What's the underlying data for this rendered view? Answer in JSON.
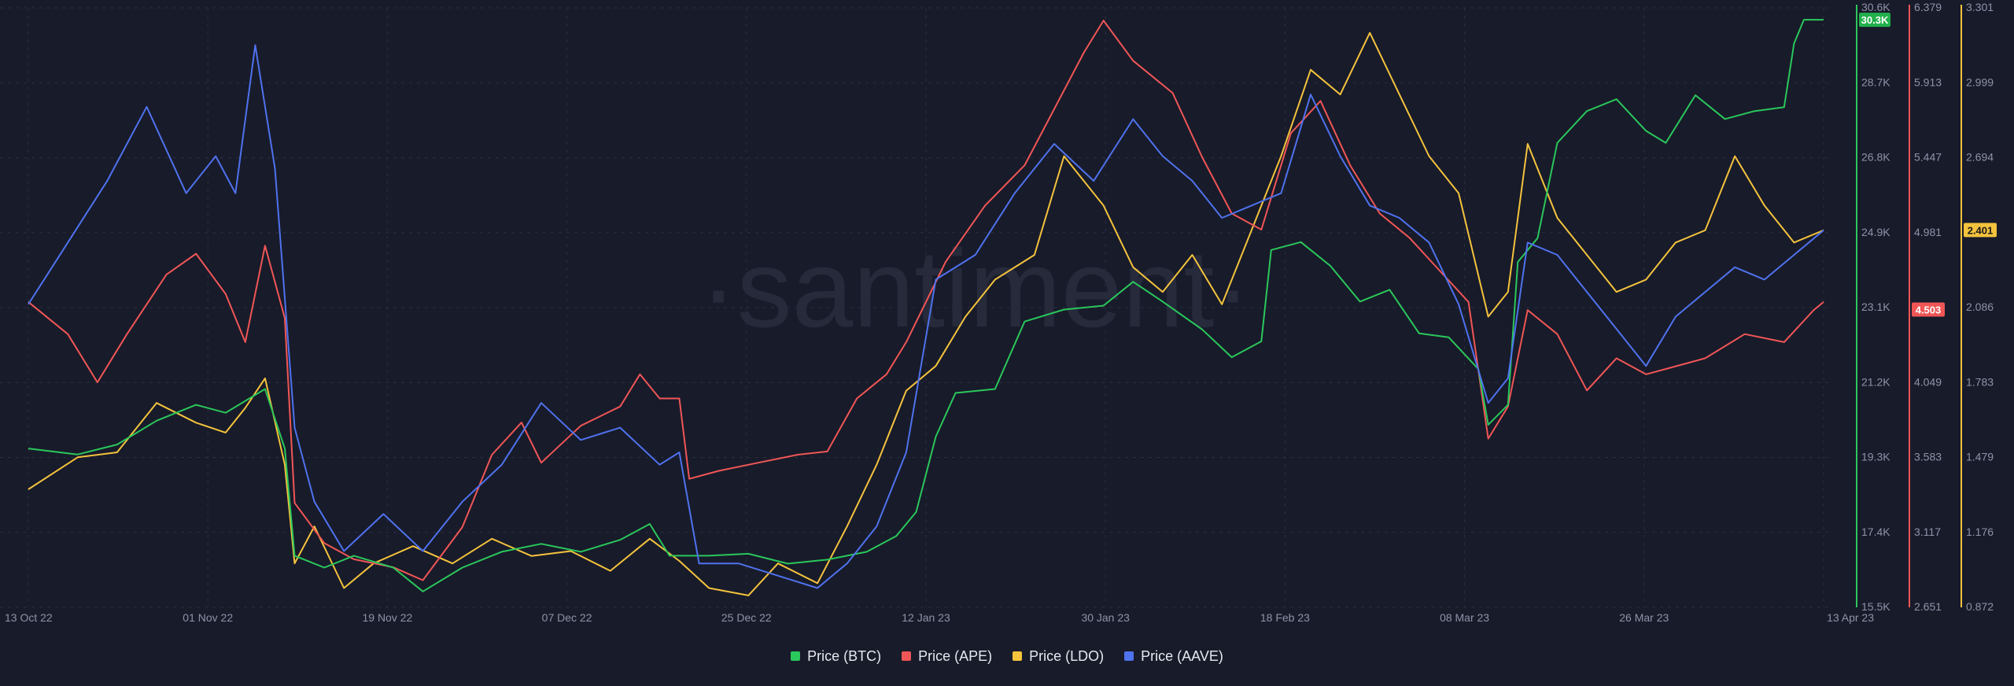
{
  "watermark": "·santiment·",
  "chart_data": {
    "type": "line",
    "x_ticks": [
      "13 Oct 22",
      "01 Nov 22",
      "19 Nov 22",
      "07 Dec 22",
      "25 Dec 22",
      "12 Jan 23",
      "30 Jan 23",
      "18 Feb 23",
      "08 Mar 23",
      "26 Mar 23",
      "13 Apr 23"
    ],
    "x_range": [
      "2022-10-13",
      "2023-04-13"
    ],
    "grid": true,
    "legend_position": "bottom-center",
    "axes": [
      {
        "id": "btc",
        "color": "#2ac75b",
        "range": [
          15500,
          30600
        ],
        "tick_labels": [
          "30.6K",
          "28.7K",
          "26.8K",
          "24.9K",
          "23.1K",
          "21.2K",
          "19.3K",
          "17.4K",
          "15.5K"
        ],
        "current_label": "30.3K",
        "current_value": 30300
      },
      {
        "id": "ape",
        "color": "#f05656",
        "range": [
          2.651,
          6.379
        ],
        "tick_labels": [
          "6.379",
          "5.913",
          "5.447",
          "4.981",
          "4.515",
          "4.049",
          "3.583",
          "3.117",
          "2.651"
        ],
        "current_label": "4.503",
        "current_value": 4.503
      },
      {
        "id": "ldo",
        "color": "#f4c33d",
        "range": [
          0.872,
          3.301
        ],
        "tick_labels": [
          "3.301",
          "2.999",
          "2.694",
          "2.391",
          "2.086",
          "1.783",
          "1.479",
          "1.176",
          "0.872"
        ],
        "current_label": "2.401",
        "current_value": 2.401
      }
    ],
    "series": [
      {
        "name": "Price (BTC)",
        "color": "#2ac75b",
        "axis": "btc",
        "points": [
          [
            "2022-10-13",
            19500
          ],
          [
            "2022-10-18",
            19350
          ],
          [
            "2022-10-22",
            19600
          ],
          [
            "2022-10-26",
            20200
          ],
          [
            "2022-10-30",
            20600
          ],
          [
            "2022-11-02",
            20400
          ],
          [
            "2022-11-04",
            20700
          ],
          [
            "2022-11-06",
            21000
          ],
          [
            "2022-11-08",
            19500
          ],
          [
            "2022-11-09",
            16800
          ],
          [
            "2022-11-12",
            16500
          ],
          [
            "2022-11-15",
            16800
          ],
          [
            "2022-11-19",
            16500
          ],
          [
            "2022-11-22",
            15900
          ],
          [
            "2022-11-26",
            16500
          ],
          [
            "2022-11-30",
            16900
          ],
          [
            "2022-12-04",
            17100
          ],
          [
            "2022-12-08",
            16900
          ],
          [
            "2022-12-12",
            17200
          ],
          [
            "2022-12-15",
            17600
          ],
          [
            "2022-12-17",
            16800
          ],
          [
            "2022-12-21",
            16800
          ],
          [
            "2022-12-25",
            16850
          ],
          [
            "2022-12-29",
            16600
          ],
          [
            "2023-01-02",
            16700
          ],
          [
            "2023-01-06",
            16900
          ],
          [
            "2023-01-09",
            17300
          ],
          [
            "2023-01-11",
            17900
          ],
          [
            "2023-01-13",
            19800
          ],
          [
            "2023-01-15",
            20900
          ],
          [
            "2023-01-19",
            21000
          ],
          [
            "2023-01-22",
            22700
          ],
          [
            "2023-01-26",
            23000
          ],
          [
            "2023-01-30",
            23100
          ],
          [
            "2023-02-02",
            23700
          ],
          [
            "2023-02-05",
            23200
          ],
          [
            "2023-02-09",
            22500
          ],
          [
            "2023-02-12",
            21800
          ],
          [
            "2023-02-15",
            22200
          ],
          [
            "2023-02-16",
            24500
          ],
          [
            "2023-02-19",
            24700
          ],
          [
            "2023-02-22",
            24100
          ],
          [
            "2023-02-25",
            23200
          ],
          [
            "2023-02-28",
            23500
          ],
          [
            "2023-03-03",
            22400
          ],
          [
            "2023-03-06",
            22300
          ],
          [
            "2023-03-09",
            21500
          ],
          [
            "2023-03-10",
            20100
          ],
          [
            "2023-03-12",
            20600
          ],
          [
            "2023-03-13",
            24200
          ],
          [
            "2023-03-15",
            24800
          ],
          [
            "2023-03-17",
            27200
          ],
          [
            "2023-03-20",
            28000
          ],
          [
            "2023-03-23",
            28300
          ],
          [
            "2023-03-26",
            27500
          ],
          [
            "2023-03-28",
            27200
          ],
          [
            "2023-03-31",
            28400
          ],
          [
            "2023-04-03",
            27800
          ],
          [
            "2023-04-06",
            28000
          ],
          [
            "2023-04-09",
            28100
          ],
          [
            "2023-04-10",
            29700
          ],
          [
            "2023-04-11",
            30300
          ],
          [
            "2023-04-13",
            30300
          ]
        ]
      },
      {
        "name": "Price (APE)",
        "color": "#f05656",
        "axis": "ape",
        "points": [
          [
            "2022-10-13",
            4.55
          ],
          [
            "2022-10-17",
            4.35
          ],
          [
            "2022-10-20",
            4.05
          ],
          [
            "2022-10-23",
            4.35
          ],
          [
            "2022-10-27",
            4.72
          ],
          [
            "2022-10-30",
            4.85
          ],
          [
            "2022-11-02",
            4.6
          ],
          [
            "2022-11-04",
            4.3
          ],
          [
            "2022-11-06",
            4.9
          ],
          [
            "2022-11-08",
            4.45
          ],
          [
            "2022-11-09",
            3.3
          ],
          [
            "2022-11-12",
            3.05
          ],
          [
            "2022-11-15",
            2.95
          ],
          [
            "2022-11-19",
            2.9
          ],
          [
            "2022-11-22",
            2.82
          ],
          [
            "2022-11-26",
            3.15
          ],
          [
            "2022-11-29",
            3.6
          ],
          [
            "2022-12-02",
            3.8
          ],
          [
            "2022-12-04",
            3.55
          ],
          [
            "2022-12-08",
            3.78
          ],
          [
            "2022-12-12",
            3.9
          ],
          [
            "2022-12-14",
            4.1
          ],
          [
            "2022-12-16",
            3.95
          ],
          [
            "2022-12-18",
            3.95
          ],
          [
            "2022-12-19",
            3.45
          ],
          [
            "2022-12-22",
            3.5
          ],
          [
            "2022-12-26",
            3.55
          ],
          [
            "2022-12-30",
            3.6
          ],
          [
            "2023-01-02",
            3.62
          ],
          [
            "2023-01-05",
            3.95
          ],
          [
            "2023-01-08",
            4.1
          ],
          [
            "2023-01-10",
            4.3
          ],
          [
            "2023-01-12",
            4.55
          ],
          [
            "2023-01-14",
            4.8
          ],
          [
            "2023-01-18",
            5.15
          ],
          [
            "2023-01-22",
            5.4
          ],
          [
            "2023-01-25",
            5.75
          ],
          [
            "2023-01-28",
            6.1
          ],
          [
            "2023-01-30",
            6.3
          ],
          [
            "2023-02-02",
            6.05
          ],
          [
            "2023-02-06",
            5.85
          ],
          [
            "2023-02-09",
            5.45
          ],
          [
            "2023-02-12",
            5.1
          ],
          [
            "2023-02-15",
            5.0
          ],
          [
            "2023-02-18",
            5.6
          ],
          [
            "2023-02-21",
            5.8
          ],
          [
            "2023-02-24",
            5.4
          ],
          [
            "2023-02-27",
            5.1
          ],
          [
            "2023-03-02",
            4.95
          ],
          [
            "2023-03-05",
            4.75
          ],
          [
            "2023-03-08",
            4.55
          ],
          [
            "2023-03-10",
            3.7
          ],
          [
            "2023-03-12",
            3.9
          ],
          [
            "2023-03-14",
            4.5
          ],
          [
            "2023-03-17",
            4.35
          ],
          [
            "2023-03-20",
            4.0
          ],
          [
            "2023-03-23",
            4.2
          ],
          [
            "2023-03-26",
            4.1
          ],
          [
            "2023-03-29",
            4.15
          ],
          [
            "2023-04-01",
            4.2
          ],
          [
            "2023-04-05",
            4.35
          ],
          [
            "2023-04-09",
            4.3
          ],
          [
            "2023-04-12",
            4.5
          ],
          [
            "2023-04-13",
            4.55
          ]
        ]
      },
      {
        "name": "Price (LDO)",
        "color": "#f4c33d",
        "axis": "ldo",
        "points": [
          [
            "2022-10-13",
            1.35
          ],
          [
            "2022-10-18",
            1.48
          ],
          [
            "2022-10-22",
            1.5
          ],
          [
            "2022-10-26",
            1.7
          ],
          [
            "2022-10-30",
            1.62
          ],
          [
            "2022-11-02",
            1.58
          ],
          [
            "2022-11-04",
            1.68
          ],
          [
            "2022-11-06",
            1.8
          ],
          [
            "2022-11-08",
            1.45
          ],
          [
            "2022-11-09",
            1.05
          ],
          [
            "2022-11-11",
            1.2
          ],
          [
            "2022-11-14",
            0.95
          ],
          [
            "2022-11-17",
            1.05
          ],
          [
            "2022-11-21",
            1.12
          ],
          [
            "2022-11-25",
            1.05
          ],
          [
            "2022-11-29",
            1.15
          ],
          [
            "2022-12-03",
            1.08
          ],
          [
            "2022-12-07",
            1.1
          ],
          [
            "2022-12-11",
            1.02
          ],
          [
            "2022-12-15",
            1.15
          ],
          [
            "2022-12-18",
            1.06
          ],
          [
            "2022-12-21",
            0.95
          ],
          [
            "2022-12-25",
            0.92
          ],
          [
            "2022-12-28",
            1.05
          ],
          [
            "2023-01-01",
            0.97
          ],
          [
            "2023-01-04",
            1.2
          ],
          [
            "2023-01-07",
            1.45
          ],
          [
            "2023-01-10",
            1.75
          ],
          [
            "2023-01-13",
            1.85
          ],
          [
            "2023-01-16",
            2.05
          ],
          [
            "2023-01-19",
            2.2
          ],
          [
            "2023-01-23",
            2.3
          ],
          [
            "2023-01-26",
            2.7
          ],
          [
            "2023-01-30",
            2.5
          ],
          [
            "2023-02-02",
            2.25
          ],
          [
            "2023-02-05",
            2.15
          ],
          [
            "2023-02-08",
            2.3
          ],
          [
            "2023-02-11",
            2.1
          ],
          [
            "2023-02-14",
            2.4
          ],
          [
            "2023-02-17",
            2.7
          ],
          [
            "2023-02-20",
            3.05
          ],
          [
            "2023-02-23",
            2.95
          ],
          [
            "2023-02-26",
            3.2
          ],
          [
            "2023-03-01",
            2.95
          ],
          [
            "2023-03-04",
            2.7
          ],
          [
            "2023-03-07",
            2.55
          ],
          [
            "2023-03-10",
            2.05
          ],
          [
            "2023-03-12",
            2.15
          ],
          [
            "2023-03-14",
            2.75
          ],
          [
            "2023-03-17",
            2.45
          ],
          [
            "2023-03-20",
            2.3
          ],
          [
            "2023-03-23",
            2.15
          ],
          [
            "2023-03-26",
            2.2
          ],
          [
            "2023-03-29",
            2.35
          ],
          [
            "2023-04-01",
            2.4
          ],
          [
            "2023-04-04",
            2.7
          ],
          [
            "2023-04-07",
            2.5
          ],
          [
            "2023-04-10",
            2.35
          ],
          [
            "2023-04-13",
            2.4
          ]
        ]
      },
      {
        "name": "Price (AAVE)",
        "color": "#4f72ee",
        "axis": "ldo",
        "points": [
          [
            "2022-10-13",
            2.1
          ],
          [
            "2022-10-17",
            2.35
          ],
          [
            "2022-10-21",
            2.6
          ],
          [
            "2022-10-25",
            2.9
          ],
          [
            "2022-10-29",
            2.55
          ],
          [
            "2022-11-01",
            2.7
          ],
          [
            "2022-11-03",
            2.55
          ],
          [
            "2022-11-05",
            3.15
          ],
          [
            "2022-11-07",
            2.65
          ],
          [
            "2022-11-09",
            1.6
          ],
          [
            "2022-11-11",
            1.3
          ],
          [
            "2022-11-14",
            1.1
          ],
          [
            "2022-11-18",
            1.25
          ],
          [
            "2022-11-22",
            1.1
          ],
          [
            "2022-11-26",
            1.3
          ],
          [
            "2022-11-30",
            1.45
          ],
          [
            "2022-12-04",
            1.7
          ],
          [
            "2022-12-08",
            1.55
          ],
          [
            "2022-12-12",
            1.6
          ],
          [
            "2022-12-16",
            1.45
          ],
          [
            "2022-12-18",
            1.5
          ],
          [
            "2022-12-20",
            1.05
          ],
          [
            "2022-12-24",
            1.05
          ],
          [
            "2022-12-28",
            1.0
          ],
          [
            "2023-01-01",
            0.95
          ],
          [
            "2023-01-04",
            1.05
          ],
          [
            "2023-01-07",
            1.2
          ],
          [
            "2023-01-10",
            1.5
          ],
          [
            "2023-01-13",
            2.2
          ],
          [
            "2023-01-17",
            2.3
          ],
          [
            "2023-01-21",
            2.55
          ],
          [
            "2023-01-25",
            2.75
          ],
          [
            "2023-01-29",
            2.6
          ],
          [
            "2023-02-02",
            2.85
          ],
          [
            "2023-02-05",
            2.7
          ],
          [
            "2023-02-08",
            2.6
          ],
          [
            "2023-02-11",
            2.45
          ],
          [
            "2023-02-14",
            2.5
          ],
          [
            "2023-02-17",
            2.55
          ],
          [
            "2023-02-20",
            2.95
          ],
          [
            "2023-02-23",
            2.7
          ],
          [
            "2023-02-26",
            2.5
          ],
          [
            "2023-03-01",
            2.45
          ],
          [
            "2023-03-04",
            2.35
          ],
          [
            "2023-03-07",
            2.1
          ],
          [
            "2023-03-10",
            1.7
          ],
          [
            "2023-03-12",
            1.8
          ],
          [
            "2023-03-14",
            2.35
          ],
          [
            "2023-03-17",
            2.3
          ],
          [
            "2023-03-20",
            2.15
          ],
          [
            "2023-03-23",
            2.0
          ],
          [
            "2023-03-26",
            1.85
          ],
          [
            "2023-03-29",
            2.05
          ],
          [
            "2023-04-01",
            2.15
          ],
          [
            "2023-04-04",
            2.25
          ],
          [
            "2023-04-07",
            2.2
          ],
          [
            "2023-04-10",
            2.3
          ],
          [
            "2023-04-13",
            2.4
          ]
        ]
      }
    ]
  },
  "legend": [
    {
      "label": "Price (BTC)",
      "color": "#2ac75b"
    },
    {
      "label": "Price (APE)",
      "color": "#f05656"
    },
    {
      "label": "Price (LDO)",
      "color": "#f4c33d"
    },
    {
      "label": "Price (AAVE)",
      "color": "#4f72ee"
    }
  ]
}
